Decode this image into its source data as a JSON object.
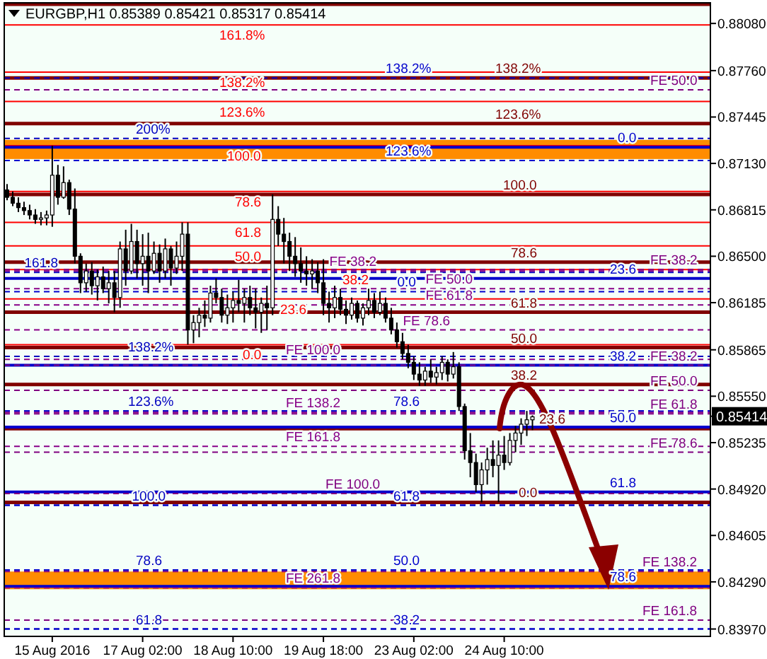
{
  "chart_data": {
    "type": "candlestick",
    "title": "EURGBP,H1  0.85389 0.85421 0.85317 0.85414",
    "color": "#000000",
    "categories": [
      null,
      null,
      null,
      null,
      null,
      null,
      null,
      null,
      "15 Aug 2016",
      null,
      null,
      null,
      null,
      null,
      null,
      null,
      null,
      null,
      null,
      null,
      null,
      null,
      null,
      null,
      "17 Aug 02:00",
      null,
      null,
      null,
      null,
      null,
      null,
      null,
      null,
      null,
      null,
      null,
      null,
      null,
      null,
      null,
      "18 Aug 10:00",
      null,
      null,
      null,
      null,
      null,
      null,
      null,
      null,
      null,
      null,
      null,
      null,
      null,
      null,
      null,
      "19 Aug 18:00",
      null,
      null,
      null,
      null,
      null,
      null,
      null,
      null,
      null,
      null,
      null,
      null,
      null,
      null,
      null,
      "23 Aug 02:00",
      null,
      null,
      null,
      null,
      null,
      null,
      null,
      null,
      null,
      null,
      null,
      null,
      null,
      null,
      null,
      "24 Aug 10:00",
      null,
      null,
      null,
      null,
      null,
      null,
      null,
      null,
      null,
      null,
      null,
      null,
      null,
      null,
      null,
      null,
      null,
      null,
      null,
      null,
      null,
      null,
      null,
      null,
      null,
      null,
      null,
      null,
      null,
      null,
      null,
      null,
      null,
      null,
      null,
      null
    ],
    "ohlc": [
      [
        0.8695,
        0.8699,
        0.8688,
        0.869
      ],
      [
        0.869,
        0.8694,
        0.8684,
        0.8686
      ],
      [
        0.8686,
        0.869,
        0.868,
        0.8683
      ],
      [
        0.8683,
        0.8687,
        0.8678,
        0.8681
      ],
      [
        0.8681,
        0.8685,
        0.8675,
        0.8678
      ],
      [
        0.8678,
        0.8682,
        0.8672,
        0.8675
      ],
      [
        0.8675,
        0.868,
        0.8671,
        0.8676
      ],
      [
        0.8676,
        0.8681,
        0.8671,
        0.8678
      ],
      [
        0.8678,
        0.8725,
        0.867,
        0.8705
      ],
      [
        0.8705,
        0.8712,
        0.8685,
        0.869
      ],
      [
        0.869,
        0.8711,
        0.8689,
        0.87
      ],
      [
        0.87,
        0.8702,
        0.8678,
        0.8682
      ],
      [
        0.8682,
        0.8696,
        0.8645,
        0.865
      ],
      [
        0.865,
        0.8652,
        0.8625,
        0.8632
      ],
      [
        0.8632,
        0.8645,
        0.8626,
        0.864
      ],
      [
        0.864,
        0.8646,
        0.8624,
        0.863
      ],
      [
        0.863,
        0.8641,
        0.862,
        0.8636
      ],
      [
        0.8636,
        0.8643,
        0.8625,
        0.8628
      ],
      [
        0.8628,
        0.864,
        0.8618,
        0.8632
      ],
      [
        0.8632,
        0.864,
        0.8612,
        0.8622
      ],
      [
        0.8622,
        0.866,
        0.8615,
        0.8655
      ],
      [
        0.8655,
        0.8668,
        0.863,
        0.864
      ],
      [
        0.864,
        0.8672,
        0.8638,
        0.866
      ],
      [
        0.866,
        0.8668,
        0.8635,
        0.8645
      ],
      [
        0.8645,
        0.8665,
        0.863,
        0.865
      ],
      [
        0.865,
        0.8666,
        0.8625,
        0.864
      ],
      [
        0.864,
        0.866,
        0.8638,
        0.8652
      ],
      [
        0.8652,
        0.8658,
        0.8632,
        0.864
      ],
      [
        0.864,
        0.8662,
        0.8635,
        0.8655
      ],
      [
        0.8655,
        0.8657,
        0.863,
        0.8642
      ],
      [
        0.8642,
        0.866,
        0.8638,
        0.865
      ],
      [
        0.865,
        0.8673,
        0.864,
        0.8665
      ],
      [
        0.8665,
        0.8673,
        0.859,
        0.86
      ],
      [
        0.86,
        0.861,
        0.8591,
        0.8605
      ],
      [
        0.8605,
        0.8615,
        0.8595,
        0.861
      ],
      [
        0.861,
        0.862,
        0.8602,
        0.8608
      ],
      [
        0.8608,
        0.863,
        0.8605,
        0.8625
      ],
      [
        0.8625,
        0.8635,
        0.8618,
        0.8622
      ],
      [
        0.8622,
        0.8628,
        0.8605,
        0.861
      ],
      [
        0.861,
        0.8624,
        0.8604,
        0.8615
      ],
      [
        0.8615,
        0.8626,
        0.8605,
        0.862
      ],
      [
        0.862,
        0.8634,
        0.8612,
        0.8618
      ],
      [
        0.8618,
        0.8628,
        0.8605,
        0.8622
      ],
      [
        0.8622,
        0.863,
        0.861,
        0.8615
      ],
      [
        0.8615,
        0.8628,
        0.8601,
        0.8612
      ],
      [
        0.8612,
        0.8622,
        0.8598,
        0.8618
      ],
      [
        0.8618,
        0.863,
        0.86,
        0.8615
      ],
      [
        0.8615,
        0.8692,
        0.861,
        0.8675
      ],
      [
        0.8675,
        0.8684,
        0.8657,
        0.8665
      ],
      [
        0.8665,
        0.8676,
        0.8645,
        0.866
      ],
      [
        0.866,
        0.8666,
        0.864,
        0.865
      ],
      [
        0.865,
        0.8663,
        0.8636,
        0.8645
      ],
      [
        0.8645,
        0.8656,
        0.8632,
        0.864
      ],
      [
        0.864,
        0.865,
        0.863,
        0.8638
      ],
      [
        0.8638,
        0.8648,
        0.8628,
        0.864
      ],
      [
        0.864,
        0.8646,
        0.8625,
        0.8632
      ],
      [
        0.8632,
        0.8648,
        0.861,
        0.8618
      ],
      [
        0.8618,
        0.8626,
        0.8605,
        0.8615
      ],
      [
        0.8615,
        0.863,
        0.8608,
        0.8622
      ],
      [
        0.8622,
        0.8628,
        0.861,
        0.8614
      ],
      [
        0.8614,
        0.862,
        0.8604,
        0.861
      ],
      [
        0.861,
        0.8622,
        0.8607,
        0.8618
      ],
      [
        0.8618,
        0.862,
        0.8605,
        0.8608
      ],
      [
        0.8608,
        0.8618,
        0.8603,
        0.8615
      ],
      [
        0.8615,
        0.8628,
        0.861,
        0.862
      ],
      [
        0.862,
        0.8625,
        0.8608,
        0.8612
      ],
      [
        0.8612,
        0.8626,
        0.861,
        0.8618
      ],
      [
        0.8618,
        0.8622,
        0.8605,
        0.8608
      ],
      [
        0.8608,
        0.8615,
        0.8597,
        0.86
      ],
      [
        0.86,
        0.8605,
        0.8588,
        0.8592
      ],
      [
        0.8592,
        0.8598,
        0.858,
        0.8584
      ],
      [
        0.8584,
        0.859,
        0.8574,
        0.8578
      ],
      [
        0.8578,
        0.8582,
        0.8566,
        0.857
      ],
      [
        0.857,
        0.8578,
        0.8562,
        0.8566
      ],
      [
        0.8566,
        0.8575,
        0.8562,
        0.8572
      ],
      [
        0.8572,
        0.858,
        0.8564,
        0.8568
      ],
      [
        0.8568,
        0.8575,
        0.8563,
        0.8571
      ],
      [
        0.8571,
        0.8582,
        0.8566,
        0.8578
      ],
      [
        0.8578,
        0.858,
        0.8565,
        0.857
      ],
      [
        0.857,
        0.8585,
        0.8567,
        0.8575
      ],
      [
        0.8575,
        0.8578,
        0.8545,
        0.8548
      ],
      [
        0.8548,
        0.855,
        0.8512,
        0.8518
      ],
      [
        0.8518,
        0.853,
        0.85,
        0.851
      ],
      [
        0.851,
        0.8516,
        0.849,
        0.8495
      ],
      [
        0.8495,
        0.851,
        0.8483,
        0.8505
      ],
      [
        0.8505,
        0.852,
        0.8495,
        0.8512
      ],
      [
        0.8512,
        0.8525,
        0.85,
        0.8508
      ],
      [
        0.8508,
        0.8525,
        0.8483,
        0.8515
      ],
      [
        0.8515,
        0.8528,
        0.8505,
        0.851
      ],
      [
        0.851,
        0.853,
        0.8508,
        0.8525
      ],
      [
        0.8525,
        0.8535,
        0.8517,
        0.853
      ],
      [
        0.853,
        0.854,
        0.8522,
        0.8536
      ],
      [
        0.8536,
        0.8545,
        0.8528,
        0.8539
      ],
      [
        0.8539,
        0.8542,
        0.8532,
        0.8541
      ],
      null,
      null,
      null,
      null,
      null,
      null,
      null,
      null,
      null,
      null,
      null,
      null,
      null,
      null,
      null,
      null,
      null,
      null,
      null,
      null,
      null,
      null,
      null,
      null,
      null,
      null,
      null,
      null,
      null,
      null,
      null
    ],
    "ylim": [
      0.8392,
      0.8822
    ],
    "yticks": [
      {
        "value": 0.8808,
        "label": "0.88080"
      },
      {
        "value": 0.8776,
        "label": "0.87760"
      },
      {
        "value": 0.87445,
        "label": "0.87445"
      },
      {
        "value": 0.8713,
        "label": "0.87130"
      },
      {
        "value": 0.86815,
        "label": "0.86815"
      },
      {
        "value": 0.865,
        "label": "0.86500"
      },
      {
        "value": 0.86185,
        "label": "0.86185"
      },
      {
        "value": 0.85865,
        "label": "0.85865"
      },
      {
        "value": 0.8555,
        "label": "0.85550"
      },
      {
        "value": 0.85235,
        "label": "0.85235"
      },
      {
        "value": 0.8492,
        "label": "0.84920"
      },
      {
        "value": 0.84605,
        "label": "0.84605"
      },
      {
        "value": 0.8429,
        "label": "0.84290"
      },
      {
        "value": 0.8397,
        "label": "0.83970"
      }
    ],
    "bands": [
      {
        "axis": "y",
        "from": 0.8716,
        "to": 0.8729,
        "color": "#ff8c00"
      },
      {
        "axis": "y",
        "from": 0.8424,
        "to": 0.8436,
        "color": "#ff8c00"
      }
    ],
    "ref_lines": [
      {
        "axis": "y",
        "value": 0.8807,
        "color": "#ff0000",
        "line_style": "solid"
      },
      {
        "axis": "y",
        "value": 0.8775,
        "color": "#ff0000",
        "line_style": "solid"
      },
      {
        "axis": "y",
        "value": 0.8755,
        "color": "#ff0000",
        "line_style": "solid"
      },
      {
        "axis": "y",
        "value": 0.8725,
        "color": "#ff0000",
        "line_style": "solid"
      },
      {
        "axis": "y",
        "value": 0.8694,
        "color": "#ff0000",
        "line_style": "solid"
      },
      {
        "axis": "y",
        "value": 0.8673,
        "color": "#ff0000",
        "line_style": "solid"
      },
      {
        "axis": "y",
        "value": 0.8657,
        "color": "#ff0000",
        "line_style": "solid"
      },
      {
        "axis": "y",
        "value": 0.8641,
        "color": "#ff0000",
        "line_style": "solid"
      },
      {
        "axis": "y",
        "value": 0.8621,
        "color": "#ff0000",
        "line_style": "solid"
      },
      {
        "axis": "y",
        "value": 0.859,
        "color": "#ff0000",
        "line_style": "solid"
      },
      {
        "axis": "y",
        "value": 0.8821,
        "color": "#800000",
        "line_style": "solid"
      },
      {
        "axis": "y",
        "value": 0.8771,
        "color": "#800000",
        "line_style": "solid"
      },
      {
        "axis": "y",
        "value": 0.874,
        "color": "#800000",
        "line_style": "solid"
      },
      {
        "axis": "y",
        "value": 0.8692,
        "color": "#800000",
        "line_style": "solid"
      },
      {
        "axis": "y",
        "value": 0.8646,
        "color": "#800000",
        "line_style": "solid"
      },
      {
        "axis": "y",
        "value": 0.8612,
        "color": "#800000",
        "line_style": "solid"
      },
      {
        "axis": "y",
        "value": 0.8588,
        "color": "#800000",
        "line_style": "solid"
      },
      {
        "axis": "y",
        "value": 0.8563,
        "color": "#800000",
        "line_style": "solid"
      },
      {
        "axis": "y",
        "value": 0.8533,
        "color": "#800000",
        "line_style": "solid"
      },
      {
        "axis": "y",
        "value": 0.8483,
        "color": "#800000",
        "line_style": "solid"
      },
      {
        "axis": "y",
        "value": 0.8724,
        "color": "#0000cc",
        "line_style": "solid"
      },
      {
        "axis": "y",
        "value": 0.8635,
        "color": "#0000cc",
        "line_style": "solid"
      },
      {
        "axis": "y",
        "value": 0.8576,
        "color": "#0000cc",
        "line_style": "solid"
      },
      {
        "axis": "y",
        "value": 0.8534,
        "color": "#0000cc",
        "line_style": "solid"
      },
      {
        "axis": "y",
        "value": 0.849,
        "color": "#0000cc",
        "line_style": "solid"
      },
      {
        "axis": "y",
        "value": 0.8426,
        "color": "#0000cc",
        "line_style": "solid"
      },
      {
        "axis": "y",
        "value": 0.873,
        "color": "#0000c0",
        "line_style": "dashed"
      },
      {
        "axis": "y",
        "value": 0.8639,
        "color": "#0000c0",
        "line_style": "dashed"
      },
      {
        "axis": "y",
        "value": 0.8582,
        "color": "#0000c0",
        "line_style": "dashed"
      },
      {
        "axis": "y",
        "value": 0.8545,
        "color": "#0000c0",
        "line_style": "dashed"
      },
      {
        "axis": "y",
        "value": 0.8481,
        "color": "#0000c0",
        "line_style": "dashed"
      },
      {
        "axis": "y",
        "value": 0.8437,
        "color": "#0000c0",
        "line_style": "dashed"
      },
      {
        "axis": "y",
        "value": 0.8397,
        "color": "#0000c0",
        "line_style": "dashed"
      },
      {
        "axis": "y",
        "value": 0.8771,
        "color": "#0000cc",
        "line_style": "dashed"
      },
      {
        "axis": "y",
        "value": 0.8715,
        "color": "#0000cc",
        "line_style": "dashed"
      },
      {
        "axis": "y",
        "value": 0.8626,
        "color": "#0000cc",
        "line_style": "dashed"
      },
      {
        "axis": "y",
        "value": 0.8545,
        "color": "#0000cc",
        "line_style": "dashed"
      },
      {
        "axis": "y",
        "value": 0.8481,
        "color": "#0000cc",
        "line_style": "dashed"
      },
      {
        "axis": "y",
        "value": 0.8437,
        "color": "#0000cc",
        "line_style": "dashed"
      },
      {
        "axis": "y",
        "value": 0.8397,
        "color": "#0000cc",
        "line_style": "dashed"
      },
      {
        "axis": "y",
        "value": 0.8763,
        "color": "#800080",
        "line_style": "dashed"
      },
      {
        "axis": "y",
        "value": 0.8641,
        "color": "#800080",
        "line_style": "dashed"
      },
      {
        "axis": "y",
        "value": 0.8576,
        "color": "#800080",
        "line_style": "dashed"
      },
      {
        "axis": "y",
        "value": 0.8559,
        "color": "#800080",
        "line_style": "dashed"
      },
      {
        "axis": "y",
        "value": 0.8543,
        "color": "#800080",
        "line_style": "dashed"
      },
      {
        "axis": "y",
        "value": 0.8517,
        "color": "#800080",
        "line_style": "dashed"
      },
      {
        "axis": "y",
        "value": 0.8489,
        "color": "#800080",
        "line_style": "dashed"
      },
      {
        "axis": "y",
        "value": 0.8436,
        "color": "#800080",
        "line_style": "dashed"
      },
      {
        "axis": "y",
        "value": 0.8403,
        "color": "#800080",
        "line_style": "dashed"
      },
      {
        "axis": "y",
        "value": 0.864,
        "color": "#880088",
        "line_style": "dashed"
      },
      {
        "axis": "y",
        "value": 0.8628,
        "color": "#880088",
        "line_style": "dashed"
      },
      {
        "axis": "y",
        "value": 0.8617,
        "color": "#880088",
        "line_style": "dashed"
      },
      {
        "axis": "y",
        "value": 0.86,
        "color": "#880088",
        "line_style": "dashed"
      },
      {
        "axis": "y",
        "value": 0.858,
        "color": "#880088",
        "line_style": "dashed"
      },
      {
        "axis": "y",
        "value": 0.8544,
        "color": "#880088",
        "line_style": "dashed"
      },
      {
        "axis": "y",
        "value": 0.8521,
        "color": "#880088",
        "line_style": "dashed"
      },
      {
        "axis": "y",
        "value": 0.8425,
        "color": "#880088",
        "line_style": "dashed"
      }
    ],
    "annotations": [
      {
        "text": "161.8%",
        "y": 0.8807
      },
      {
        "text": "138.2%",
        "y": 0.8775
      },
      {
        "text": "123.6%",
        "y": 0.8755
      },
      {
        "text": "100.0",
        "y": 0.8725
      },
      {
        "text": "78.6",
        "y": 0.8694
      },
      {
        "text": "61.8",
        "y": 0.8673
      },
      {
        "text": "50.0",
        "y": 0.8657
      },
      {
        "text": "38.2",
        "y": 0.8641
      },
      {
        "text": "23.6",
        "y": 0.8621
      },
      {
        "text": "0.0",
        "y": 0.859
      },
      {
        "text": "138.2%",
        "y": 0.8771
      },
      {
        "text": "123.6%",
        "y": 0.874
      },
      {
        "text": "100.0",
        "y": 0.8692
      },
      {
        "text": "78.6",
        "y": 0.8646
      },
      {
        "text": "61.8",
        "y": 0.8612
      },
      {
        "text": "50.0",
        "y": 0.8588
      },
      {
        "text": "38.2",
        "y": 0.8563
      },
      {
        "text": "23.6",
        "y": 0.8533
      },
      {
        "text": "0.0",
        "y": 0.8483
      },
      {
        "text": "0.0",
        "y": 0.8724
      },
      {
        "text": "23.6",
        "y": 0.8635
      },
      {
        "text": "38.2",
        "y": 0.8576
      },
      {
        "text": "50.0",
        "y": 0.8534
      },
      {
        "text": "61.8",
        "y": 0.849
      },
      {
        "text": "78.6",
        "y": 0.8426
      },
      {
        "text": "200%",
        "y": 0.873
      },
      {
        "text": "161.8",
        "y": 0.8639
      },
      {
        "text": "138.2%",
        "y": 0.8582
      },
      {
        "text": "123.6%",
        "y": 0.8545
      },
      {
        "text": "100.0",
        "y": 0.8481
      },
      {
        "text": "78.6",
        "y": 0.8437
      },
      {
        "text": "61.8",
        "y": 0.8397
      },
      {
        "text": "138.2%",
        "y": 0.8771
      },
      {
        "text": "123.6%",
        "y": 0.8715
      },
      {
        "text": "0.0",
        "y": 0.8626
      },
      {
        "text": "78.6",
        "y": 0.8545
      },
      {
        "text": "61.8",
        "y": 0.8481
      },
      {
        "text": "50.0",
        "y": 0.8437
      },
      {
        "text": "38.2",
        "y": 0.8397
      },
      {
        "text": "FE 50.0",
        "y": 0.8763
      },
      {
        "text": "FE 38.2",
        "y": 0.8641
      },
      {
        "text": "FE 38.2",
        "y": 0.8576
      },
      {
        "text": "FE 50.0",
        "y": 0.8559
      },
      {
        "text": "FE 61.8",
        "y": 0.8543
      },
      {
        "text": "FE 78.6",
        "y": 0.8517
      },
      {
        "text": "FE 100.0",
        "y": 0.8489
      },
      {
        "text": "FE 138.2",
        "y": 0.8436
      },
      {
        "text": "FE 161.8",
        "y": 0.8403
      },
      {
        "text": "FE 38.2",
        "y": 0.864
      },
      {
        "text": "FE 50.0",
        "y": 0.8628
      },
      {
        "text": "FE 61.8",
        "y": 0.8617
      },
      {
        "text": "FE 78.6",
        "y": 0.86
      },
      {
        "text": "FE 100.0",
        "y": 0.858
      },
      {
        "text": "FE 138.2",
        "y": 0.8544
      },
      {
        "text": "FE 161.8",
        "y": 0.8521
      },
      {
        "text": "FE 261.8",
        "y": 0.8425
      },
      {
        "text": "0.85414",
        "y": 0.85414
      }
    ]
  }
}
